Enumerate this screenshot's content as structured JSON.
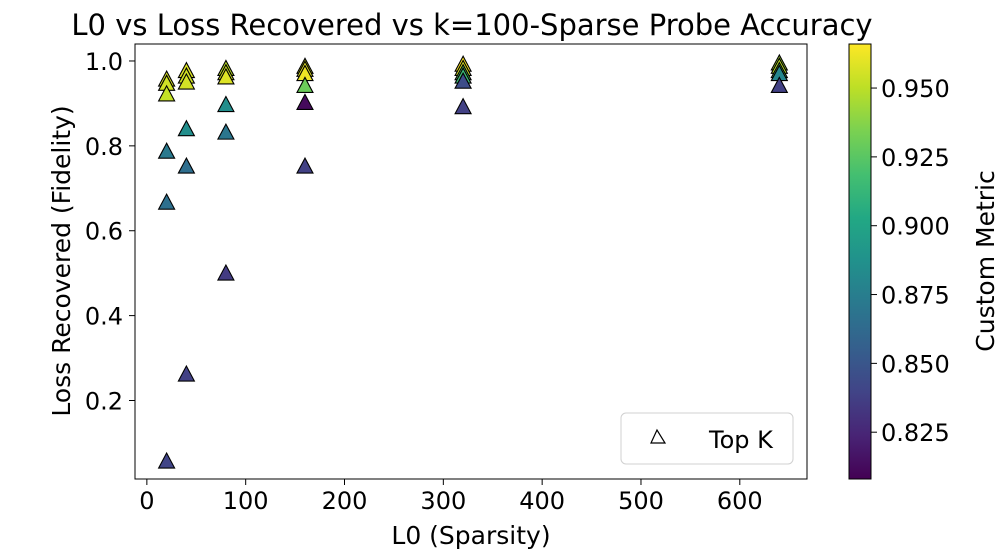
{
  "chart_data": {
    "type": "scatter",
    "title": "L0 vs Loss Recovered vs k=100-Sparse Probe Accuracy",
    "xlabel": "L0 (Sparsity)",
    "ylabel": "Loss Recovered (Fidelity)",
    "xlim": [
      -12,
      668
    ],
    "ylim": [
      0.015,
      1.04
    ],
    "xticks": [
      0,
      100,
      200,
      300,
      400,
      500,
      600,
      700
    ],
    "xtick_labels": [
      "0",
      "100",
      "200",
      "300",
      "400",
      "500",
      "600"
    ],
    "yticks": [
      0.2,
      0.4,
      0.6,
      0.8,
      1.0
    ],
    "ytick_labels": [
      "0.2",
      "0.4",
      "0.6",
      "0.8",
      "1.0"
    ],
    "legend": {
      "label": "Top K",
      "marker": "triangle",
      "placement": "lower right"
    },
    "colorbar": {
      "label": "Custom Metric",
      "colormap": "viridis",
      "range": [
        0.808,
        0.966
      ],
      "ticks": [
        0.825,
        0.85,
        0.875,
        0.9,
        0.925,
        0.95
      ],
      "tick_labels": [
        "0.825",
        "0.850",
        "0.875",
        "0.900",
        "0.925",
        "0.950"
      ]
    },
    "series": [
      {
        "marker": "triangle",
        "points": [
          {
            "x": 20,
            "y": 0.955,
            "c": 0.957
          },
          {
            "x": 20,
            "y": 0.945,
            "c": 0.955
          },
          {
            "x": 20,
            "y": 0.92,
            "c": 0.952
          },
          {
            "x": 20,
            "y": 0.785,
            "c": 0.872
          },
          {
            "x": 20,
            "y": 0.665,
            "c": 0.866
          },
          {
            "x": 20,
            "y": 0.055,
            "c": 0.84
          },
          {
            "x": 40,
            "y": 0.975,
            "c": 0.958
          },
          {
            "x": 40,
            "y": 0.962,
            "c": 0.955
          },
          {
            "x": 40,
            "y": 0.948,
            "c": 0.956
          },
          {
            "x": 40,
            "y": 0.838,
            "c": 0.885
          },
          {
            "x": 40,
            "y": 0.75,
            "c": 0.865
          },
          {
            "x": 40,
            "y": 0.26,
            "c": 0.838
          },
          {
            "x": 80,
            "y": 0.98,
            "c": 0.95
          },
          {
            "x": 80,
            "y": 0.97,
            "c": 0.955
          },
          {
            "x": 80,
            "y": 0.96,
            "c": 0.958
          },
          {
            "x": 80,
            "y": 0.895,
            "c": 0.885
          },
          {
            "x": 80,
            "y": 0.83,
            "c": 0.87
          },
          {
            "x": 80,
            "y": 0.498,
            "c": 0.835
          },
          {
            "x": 160,
            "y": 0.985,
            "c": 0.958
          },
          {
            "x": 160,
            "y": 0.978,
            "c": 0.96
          },
          {
            "x": 160,
            "y": 0.968,
            "c": 0.962
          },
          {
            "x": 160,
            "y": 0.94,
            "c": 0.93
          },
          {
            "x": 160,
            "y": 0.9,
            "c": 0.812
          },
          {
            "x": 160,
            "y": 0.75,
            "c": 0.838
          },
          {
            "x": 320,
            "y": 0.99,
            "c": 0.966
          },
          {
            "x": 320,
            "y": 0.98,
            "c": 0.956
          },
          {
            "x": 320,
            "y": 0.97,
            "c": 0.925
          },
          {
            "x": 320,
            "y": 0.962,
            "c": 0.915
          },
          {
            "x": 320,
            "y": 0.95,
            "c": 0.845
          },
          {
            "x": 320,
            "y": 0.89,
            "c": 0.838
          },
          {
            "x": 640,
            "y": 0.993,
            "c": 0.945
          },
          {
            "x": 640,
            "y": 0.985,
            "c": 0.95
          },
          {
            "x": 640,
            "y": 0.975,
            "c": 0.925
          },
          {
            "x": 640,
            "y": 0.968,
            "c": 0.88
          },
          {
            "x": 640,
            "y": 0.94,
            "c": 0.838
          }
        ]
      }
    ]
  }
}
